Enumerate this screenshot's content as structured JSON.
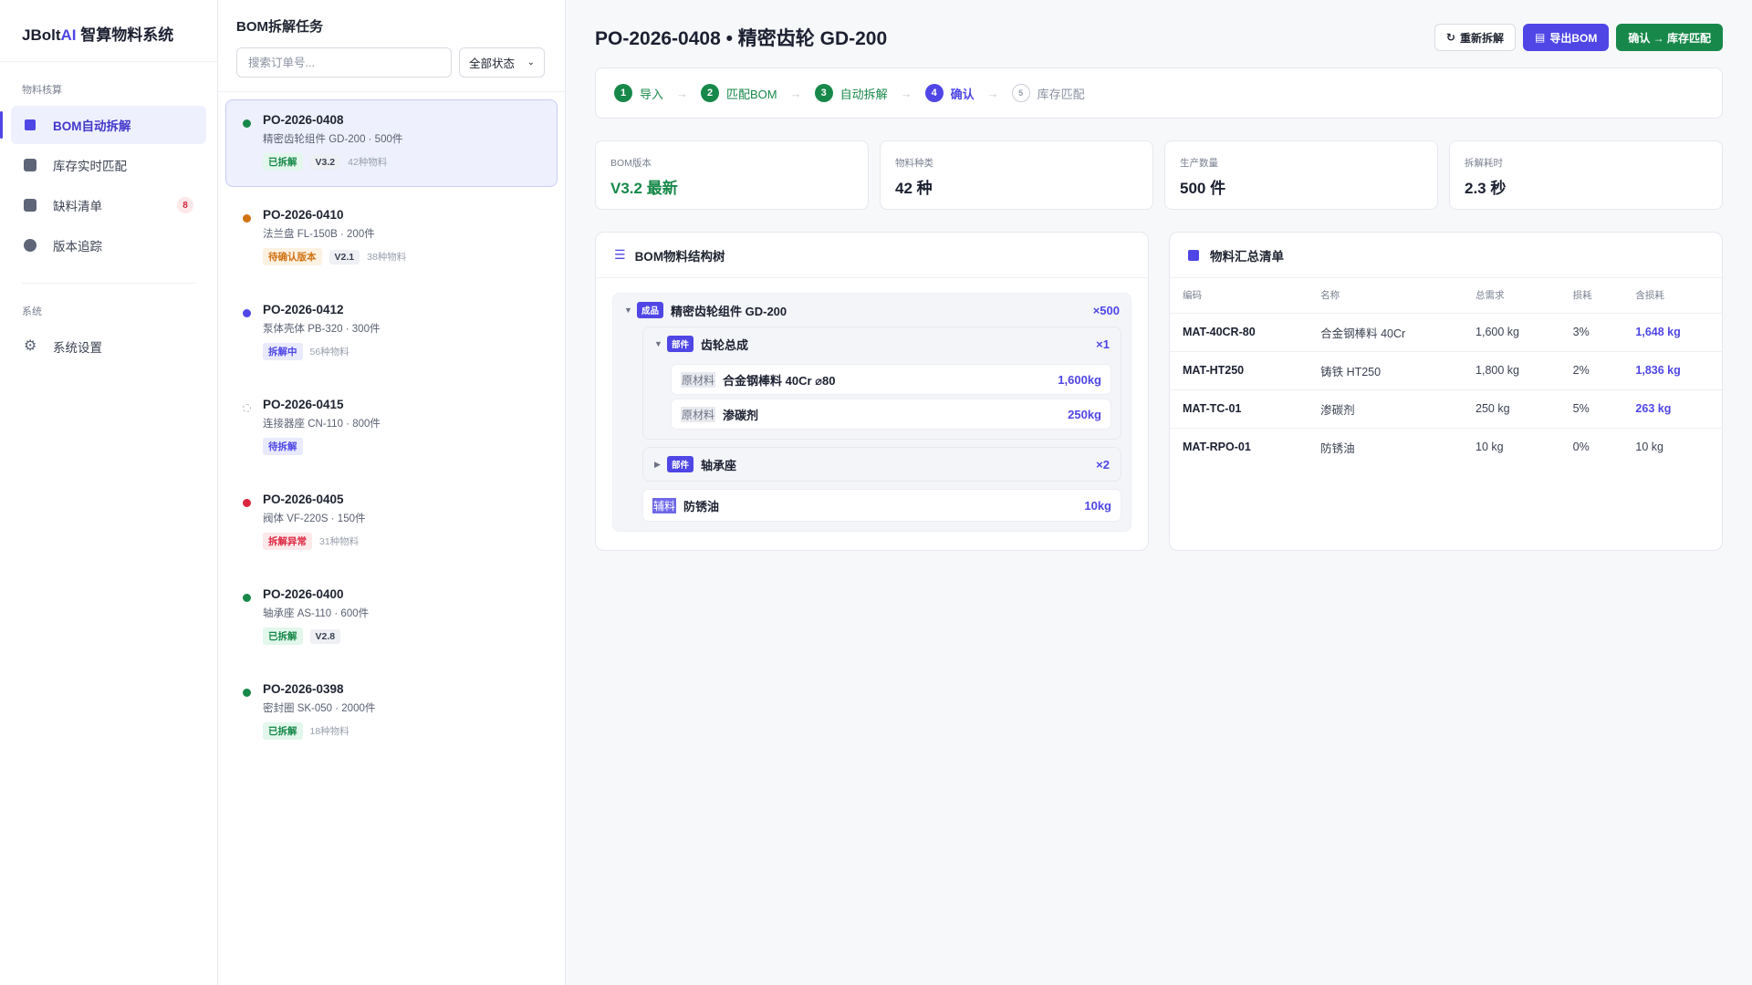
{
  "brand": {
    "prefix": "JBolt",
    "ai": "AI",
    "suffix": " 智算物料系统"
  },
  "nav": {
    "section1": "物料核算",
    "items": [
      {
        "label": "BOM自动拆解",
        "icon": "square-icon"
      },
      {
        "label": "库存实时匹配",
        "icon": "square-icon"
      },
      {
        "label": "缺料清单",
        "icon": "clipboard-icon",
        "badge": "8"
      },
      {
        "label": "版本追踪",
        "icon": "clock-icon"
      }
    ],
    "section2": "系统",
    "settings": {
      "label": "系统设置",
      "icon": "gear-icon"
    }
  },
  "tasklist": {
    "title": "BOM拆解任务",
    "search_placeholder": "搜索订单号...",
    "filter_value": "全部状态",
    "tasks": [
      {
        "id": "PO-2026-0408",
        "desc": "精密齿轮组件 GD-200 · 500件",
        "status": "已拆解",
        "version": "V3.2",
        "count": "42种物料",
        "dot": "#17884a"
      },
      {
        "id": "PO-2026-0410",
        "desc": "法兰盘 FL-150B · 200件",
        "status": "待确认版本",
        "version": "V2.1",
        "count": "38种物料",
        "dot": "#d07212"
      },
      {
        "id": "PO-2026-0412",
        "desc": "泵体壳体 PB-320 · 300件",
        "status": "拆解中",
        "version": "",
        "count": "56种物料",
        "dot": "#4f46e5"
      },
      {
        "id": "PO-2026-0415",
        "desc": "连接器座 CN-110 · 800件",
        "status": "待拆解",
        "version": "",
        "count": "",
        "dot": "hollow"
      },
      {
        "id": "PO-2026-0405",
        "desc": "阀体 VF-220S · 150件",
        "status": "拆解异常",
        "version": "",
        "count": "31种物料",
        "dot": "#dc2640"
      },
      {
        "id": "PO-2026-0400",
        "desc": "轴承座 AS-110 · 600件",
        "status": "已拆解",
        "version": "V2.8",
        "count": "",
        "dot": "#17884a"
      },
      {
        "id": "PO-2026-0398",
        "desc": "密封圈 SK-050 · 2000件",
        "status": "已拆解",
        "version": "",
        "count": "18种物料",
        "dot": "#17884a"
      }
    ]
  },
  "main": {
    "title": "PO-2026-0408 • 精密齿轮 GD-200",
    "actions": {
      "redo": "重新拆解",
      "export": "导出BOM",
      "confirm": "确认 → 库存匹配"
    },
    "steps": [
      {
        "num": "1",
        "label": "导入",
        "state": "done"
      },
      {
        "num": "2",
        "label": "匹配BOM",
        "state": "done"
      },
      {
        "num": "3",
        "label": "自动拆解",
        "state": "done"
      },
      {
        "num": "4",
        "label": "确认",
        "state": "current"
      },
      {
        "num": "5",
        "label": "库存匹配",
        "state": "todo"
      }
    ],
    "stats": [
      {
        "label": "BOM版本",
        "value": "V3.2 最新"
      },
      {
        "label": "物料种类",
        "value": "42 种"
      },
      {
        "label": "生产数量",
        "value": "500 件"
      },
      {
        "label": "拆解耗时",
        "value": "2.3 秒"
      }
    ],
    "tree": {
      "title": "BOM物料结构树",
      "root": {
        "badge": "成品",
        "name": "精密齿轮组件 GD-200",
        "qty": "×500"
      },
      "sub1": {
        "badge": "部件",
        "name": "齿轮总成",
        "qty": "×1"
      },
      "leaf1": {
        "badge": "原材料",
        "name": "合金钢棒料 40Cr ⌀80",
        "qty": "1,600kg"
      },
      "leaf2": {
        "badge": "原材料",
        "name": "渗碳剂",
        "qty": "250kg"
      },
      "sub2": {
        "badge": "部件",
        "name": "轴承座",
        "qty": "×2"
      },
      "leaf3": {
        "badge": "辅料",
        "name": "防锈油",
        "qty": "10kg"
      }
    },
    "summary": {
      "title": "物料汇总清单",
      "headers": [
        "编码",
        "名称",
        "总需求",
        "损耗",
        "含损耗"
      ],
      "rows": [
        [
          "MAT-40CR-80",
          "合金钢棒料 40Cr",
          "1,600 kg",
          "3%",
          "1,648 kg"
        ],
        [
          "MAT-HT250",
          "铸铁 HT250",
          "1,800 kg",
          "2%",
          "1,836 kg"
        ],
        [
          "MAT-TC-01",
          "渗碳剂",
          "250 kg",
          "5%",
          "263 kg"
        ],
        [
          "MAT-RPO-01",
          "防锈油",
          "10 kg",
          "0%",
          "10 kg"
        ]
      ]
    }
  }
}
